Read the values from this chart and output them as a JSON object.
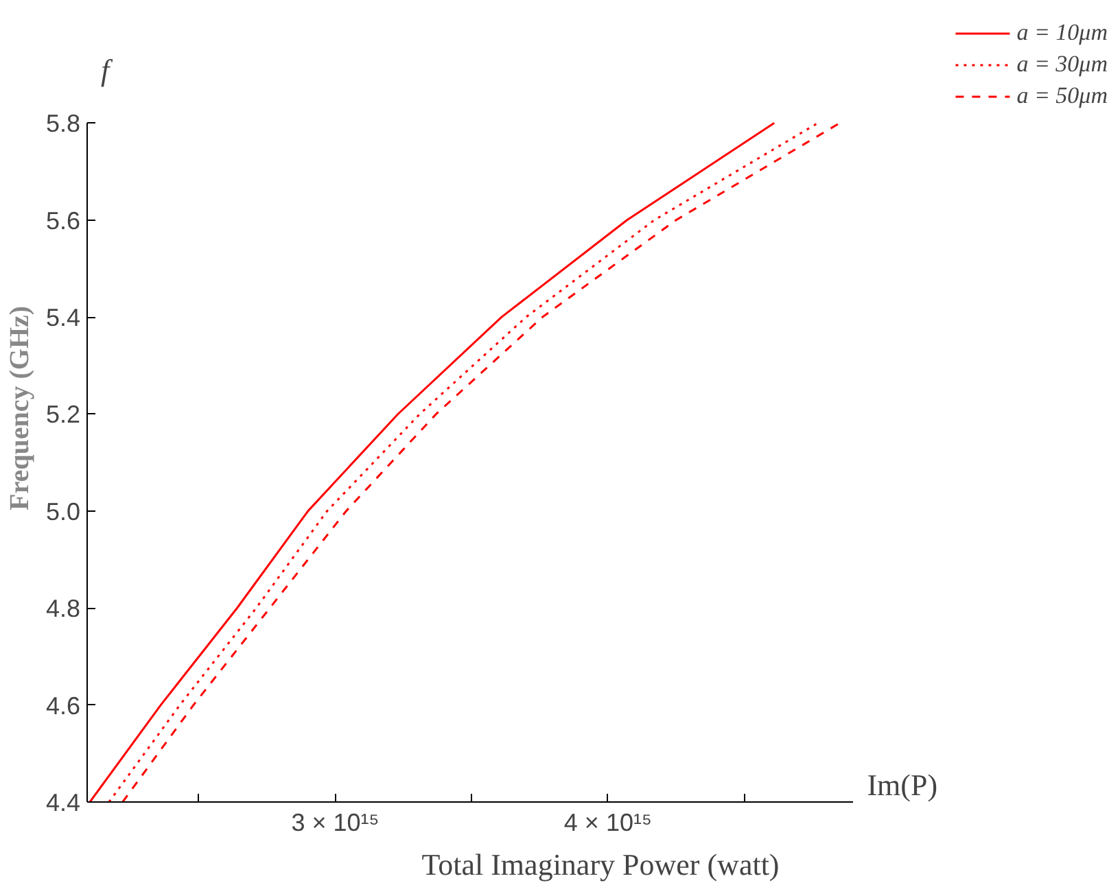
{
  "chart_data": {
    "type": "line",
    "xlabel": "Total Imaginary Power (watt)",
    "ylabel": "Frequency (GHz)",
    "annotations": [
      "f",
      "Im(P)"
    ],
    "xlim": [
      2090000000000000.0,
      4900000000000000.0
    ],
    "ylim": [
      4.4,
      5.8
    ],
    "xticks": [
      {
        "value": 2500000000000000.0,
        "label": null
      },
      {
        "value": 3000000000000000.0,
        "label": "3 × 10¹⁵"
      },
      {
        "value": 3500000000000000.0,
        "label": null
      },
      {
        "value": 4000000000000000.0,
        "label": "4 × 10¹⁵"
      },
      {
        "value": 4500000000000000.0,
        "label": null
      }
    ],
    "yticks": [
      4.4,
      4.6,
      4.8,
      {
        "value": 5.0,
        "label": "5.0"
      },
      5.2,
      5.4,
      5.6,
      5.8
    ],
    "grid": false,
    "legend": "right",
    "marker": "none",
    "series": [
      {
        "name": "a = 10μm",
        "color": "#ff0000",
        "line_style": "solid",
        "x": [
          2100000000000000.0,
          2360000000000000.0,
          2640000000000000.0,
          2900000000000000.0,
          3230000000000000.0,
          3610000000000000.0,
          4070000000000000.0,
          4610000000000000.0
        ],
        "values": [
          4.4,
          4.6,
          4.8,
          5.0,
          5.2,
          5.4,
          5.6,
          5.8
        ]
      },
      {
        "name": "a = 30μm",
        "color": "#ff0000",
        "line_style": "dotted",
        "x": [
          2170000000000000.0,
          2430000000000000.0,
          2710000000000000.0,
          2970000000000000.0,
          3310000000000000.0,
          3700000000000000.0,
          4170000000000000.0,
          4770000000000000.0
        ],
        "values": [
          4.4,
          4.6,
          4.8,
          5.0,
          5.2,
          5.4,
          5.6,
          5.8
        ]
      },
      {
        "name": "a = 50μm",
        "color": "#ff0000",
        "line_style": "dashed",
        "x": [
          2220000000000000.0,
          2480000000000000.0,
          2760000000000000.0,
          3040000000000000.0,
          3370000000000000.0,
          3760000000000000.0,
          4250000000000000.0,
          4850000000000000.0
        ],
        "values": [
          4.4,
          4.6,
          4.8,
          5.0,
          5.2,
          5.4,
          5.6,
          5.8
        ]
      }
    ]
  }
}
